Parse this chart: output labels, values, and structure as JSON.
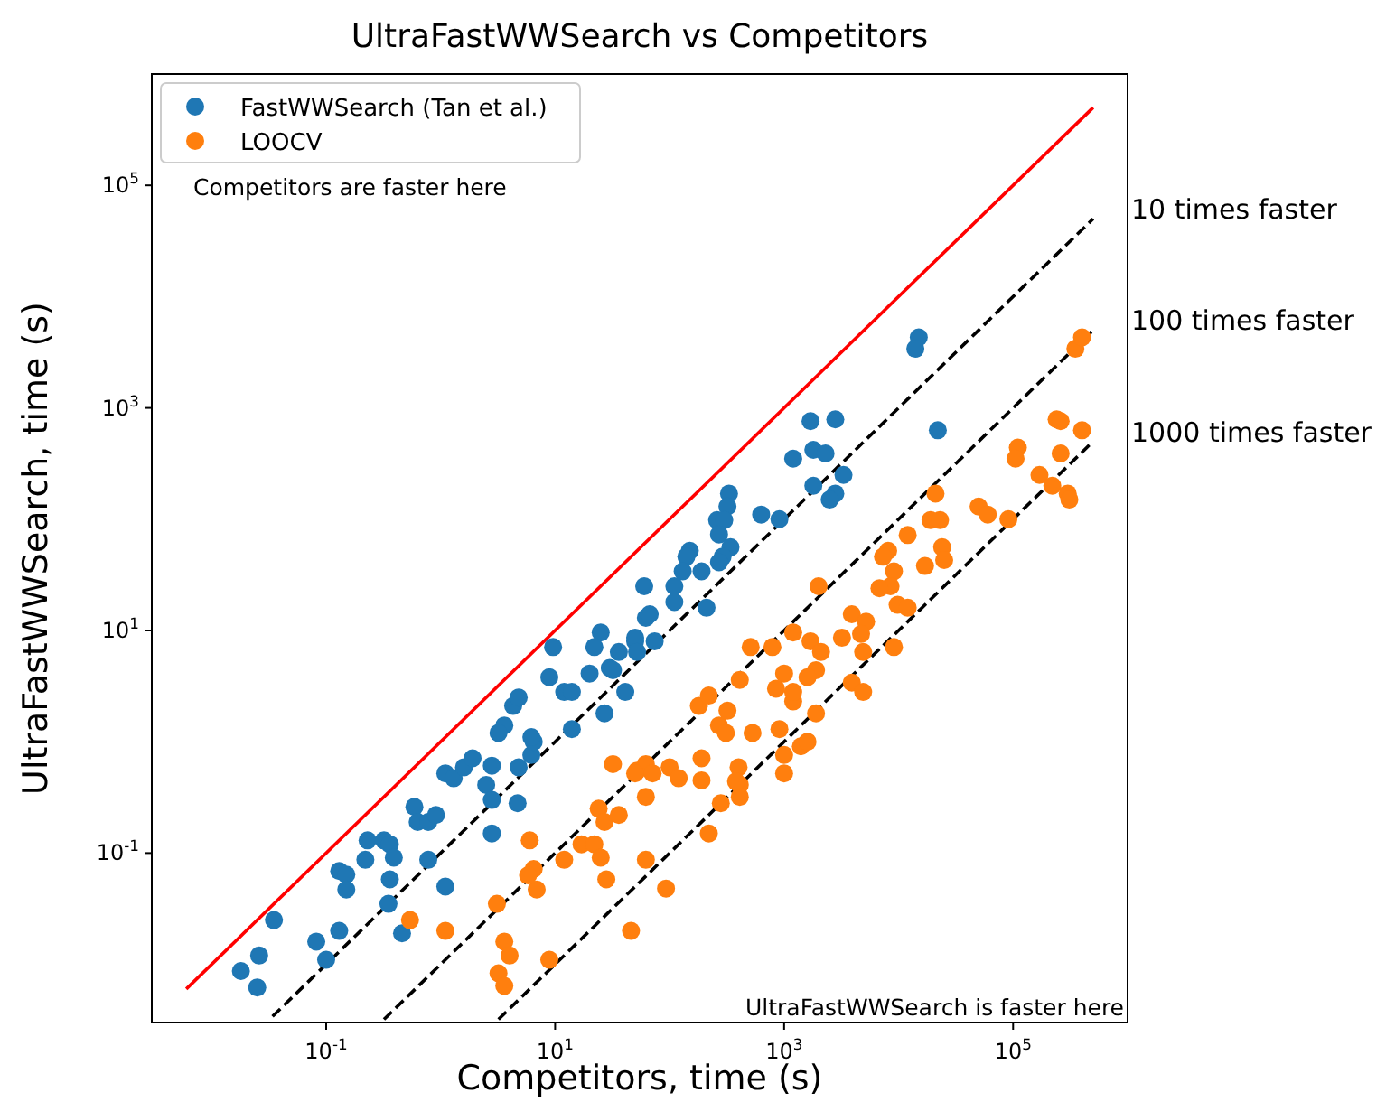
{
  "chart_data": {
    "type": "scatter",
    "title": "UltraFastWWSearch vs Competitors",
    "xlabel": "Competitors, time (s)",
    "ylabel": "UltraFastWWSearch, time (s)",
    "log": "xy",
    "xlim": [
      0.003,
      1000000
    ],
    "ylim": [
      0.003,
      1000000
    ],
    "xticks": [
      {
        "value": 0.1,
        "label": "10$^{-1}$"
      },
      {
        "value": 10,
        "label": "10$^{1}$"
      },
      {
        "value": 1000,
        "label": "10$^{3}$"
      },
      {
        "value": 100000,
        "label": "10$^{5}$"
      }
    ],
    "yticks": [
      {
        "value": 0.1,
        "label": "10$^{-1}$"
      },
      {
        "value": 10,
        "label": "10$^{1}$"
      },
      {
        "value": 1000,
        "label": "10$^{3}$"
      },
      {
        "value": 100000,
        "label": "10$^{5}$"
      }
    ],
    "grid": false,
    "legend": "top left",
    "marker": "circle",
    "annotations": [
      "Competitors are faster here",
      "UltraFastWWSearch is faster here"
    ],
    "series": [
      {
        "type": "line",
        "color": "#ff0000",
        "line_style": "solid",
        "marker": "none",
        "x": [
          0.006,
          500000
        ],
        "values": [
          0.006,
          500000
        ]
      },
      {
        "type": "line",
        "name": "10 times faster",
        "color": "#000000",
        "line_style": "dashed",
        "marker": "none",
        "x": [
          0.034,
          500000
        ],
        "values": [
          0.0034,
          50000
        ]
      },
      {
        "type": "line",
        "name": "100 times faster",
        "color": "#000000",
        "line_style": "dashed",
        "marker": "none",
        "x": [
          0.32,
          500000
        ],
        "values": [
          0.0032,
          5000
        ]
      },
      {
        "type": "line",
        "name": "1000 times faster",
        "color": "#000000",
        "line_style": "dashed",
        "marker": "none",
        "x": [
          3.2,
          500000
        ],
        "values": [
          0.0032,
          500
        ]
      },
      {
        "name": "FastWWSearch (Tan et al.)",
        "color": "#1f77b4",
        "x": [
          0.018,
          0.025,
          0.026,
          0.035,
          0.082,
          0.1,
          0.13,
          0.13,
          0.15,
          0.15,
          0.22,
          0.23,
          0.32,
          0.36,
          0.39,
          0.36,
          0.35,
          0.46,
          0.59,
          0.63,
          0.78,
          0.91,
          0.78,
          1.1,
          1.1,
          1.3,
          1.6,
          1.9,
          2.8,
          2.5,
          2.8,
          2.8,
          4.7,
          4.8,
          6.2,
          6.5,
          14,
          3.6,
          4.3,
          27,
          60,
          62,
          9.6,
          8.9,
          12,
          14,
          20,
          25,
          22,
          30,
          36,
          50,
          41,
          4.8,
          3.2,
          6.2,
          1700,
          2800,
          22000,
          1200,
          1800,
          2300,
          1800,
          3300,
          2800,
          2500,
          330,
          320,
          260,
          300,
          270,
          630,
          910,
          340,
          290,
          150,
          140,
          130,
          190,
          270,
          110,
          110,
          210,
          67,
          50,
          52,
          74,
          32,
          15000,
          14000
        ],
        "values": [
          0.0087,
          0.0062,
          0.012,
          0.025,
          0.016,
          0.011,
          0.02,
          0.069,
          0.064,
          0.047,
          0.087,
          0.13,
          0.13,
          0.12,
          0.091,
          0.058,
          0.035,
          0.019,
          0.26,
          0.19,
          0.19,
          0.22,
          0.087,
          0.05,
          0.52,
          0.47,
          0.59,
          0.71,
          0.61,
          0.41,
          0.3,
          0.15,
          0.28,
          0.59,
          0.76,
          1.0,
          1.3,
          1.4,
          2.1,
          1.8,
          25,
          13,
          7.1,
          3.8,
          2.8,
          2.8,
          4.1,
          9.6,
          7.1,
          4.6,
          6.4,
          8.0,
          2.8,
          2.5,
          1.2,
          1.1,
          760,
          790,
          630,
          350,
          420,
          390,
          200,
          250,
          170,
          150,
          170,
          130,
          98,
          98,
          73,
          110,
          100,
          56,
          46,
          52,
          46,
          34,
          34,
          41,
          25,
          18,
          16,
          14,
          8.6,
          6.4,
          8.0,
          4.4,
          4300,
          3400
        ]
      },
      {
        "name": "LOOCV",
        "color": "#ff7f0e",
        "x": [
          0.54,
          1.1,
          3.1,
          3.6,
          4.0,
          3.2,
          3.6,
          6.0,
          6.5,
          6.9,
          5.8,
          8.9,
          12,
          17,
          22,
          25,
          28,
          32,
          24,
          27,
          36,
          46,
          62,
          52,
          62,
          180,
          270,
          310,
          530,
          910,
          1200,
          190,
          190,
          100,
          120,
          62,
          50,
          71,
          400,
          410,
          410,
          280,
          220,
          380,
          1000,
          1000,
          1400,
          1600,
          1900,
          93,
          240000,
          260000,
          400000,
          110000,
          105000,
          260000,
          170000,
          220000,
          300000,
          310000,
          50000,
          60000,
          91000,
          21000,
          19000,
          23000,
          24000,
          17000,
          25000,
          12000,
          8100,
          7300,
          9100,
          8500,
          6800,
          9800,
          12000,
          2000,
          3900,
          5200,
          4700,
          4900,
          9100,
          3200,
          1200,
          1700,
          2100,
          510,
          790,
          410,
          1000,
          850,
          1200,
          1900,
          1600,
          220,
          320,
          3900,
          4900,
          350000,
          400000
        ],
        "values": [
          0.025,
          0.02,
          0.035,
          0.016,
          0.012,
          0.0083,
          0.0064,
          0.13,
          0.072,
          0.047,
          0.063,
          0.011,
          0.087,
          0.12,
          0.12,
          0.091,
          0.058,
          0.63,
          0.25,
          0.19,
          0.22,
          0.02,
          0.087,
          0.55,
          0.32,
          2.1,
          1.4,
          1.2,
          1.2,
          1.3,
          2.3,
          0.71,
          0.45,
          0.59,
          0.47,
          0.63,
          0.52,
          0.52,
          0.59,
          0.41,
          0.32,
          0.28,
          0.15,
          0.44,
          0.76,
          0.52,
          0.91,
          1.0,
          1.8,
          0.048,
          790,
          760,
          630,
          440,
          350,
          390,
          250,
          200,
          170,
          150,
          130,
          110,
          100,
          170,
          98,
          98,
          56,
          38,
          43,
          72,
          52,
          46,
          34,
          25,
          24,
          17,
          16,
          25,
          14,
          12,
          9.3,
          6.4,
          7.1,
          8.6,
          9.6,
          8.0,
          6.4,
          7.1,
          7.1,
          3.6,
          4.1,
          3.0,
          2.8,
          4.4,
          3.8,
          2.6,
          1.9,
          3.4,
          2.8,
          3400,
          4300
        ]
      }
    ]
  }
}
